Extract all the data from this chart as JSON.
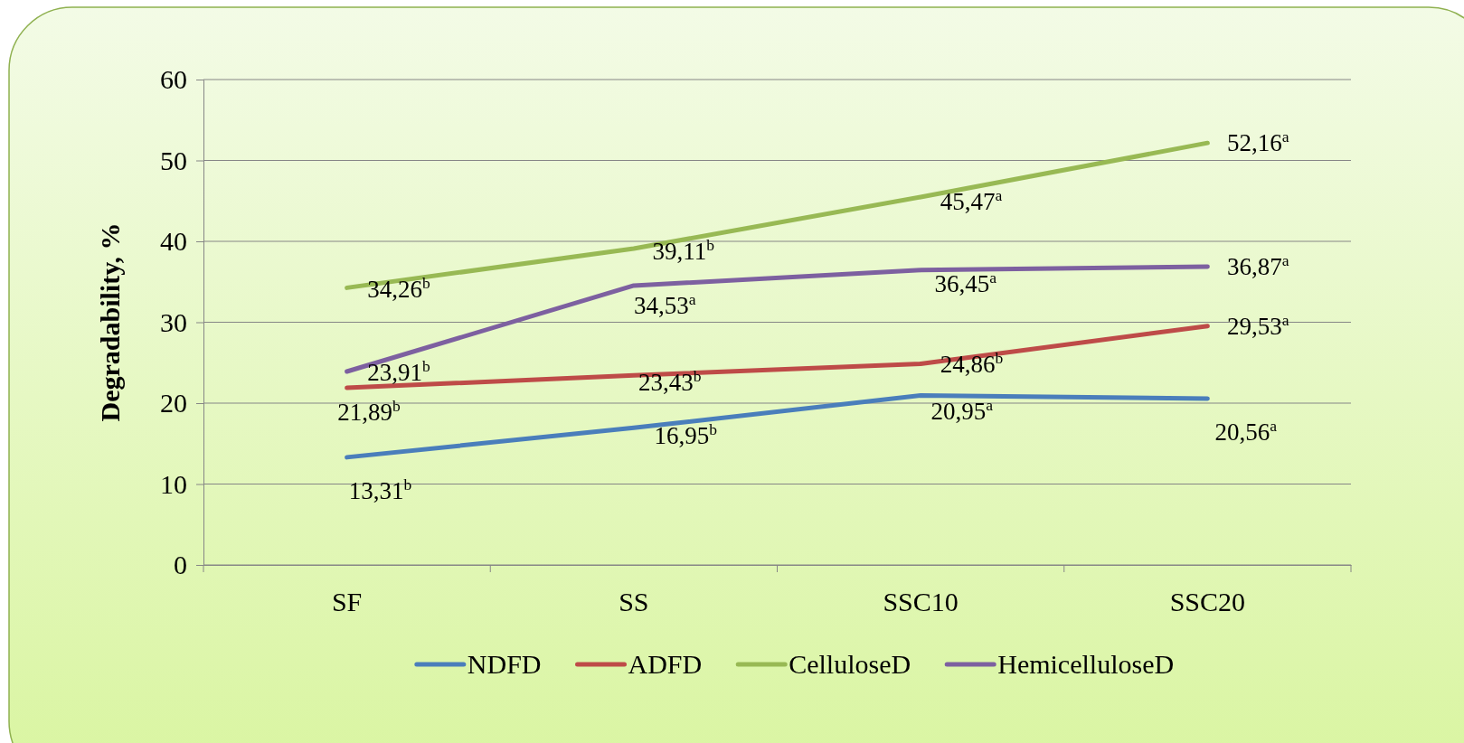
{
  "chart_data": {
    "type": "line",
    "ylabel": "Degradability, %",
    "categories": [
      "SF",
      "SS",
      "SSC10",
      "SSC20"
    ],
    "ylim": [
      0,
      60
    ],
    "yticks": [
      0,
      10,
      20,
      30,
      40,
      50,
      60
    ],
    "grid": "y",
    "legend": "bottom",
    "marker": "none",
    "line_style": "solid",
    "series": [
      {
        "name": "NDFD",
        "color": "#4a7ebb",
        "values": [
          13.31,
          16.95,
          20.95,
          20.56
        ],
        "value_labels": [
          "13,31$^{b}$",
          "16,95$^{b}$",
          "20,95$^{a}$",
          "20,56$^{a}$"
        ]
      },
      {
        "name": "ADFD",
        "color": "#be4b48",
        "values": [
          21.89,
          23.43,
          24.86,
          29.53
        ],
        "value_labels": [
          "21,89$^{b}$",
          "23,43$^{b}$",
          "24,86$^{b}$",
          "29,53$^{a}$"
        ]
      },
      {
        "name": "CelluloseD",
        "color": "#98b954",
        "values": [
          34.26,
          39.11,
          45.47,
          52.16
        ],
        "value_labels": [
          "34,26$^{b}$",
          "39,11$^{b}$",
          "45,47$^{a}$",
          "52,16$^{a}$"
        ]
      },
      {
        "name": "HemicelluloseD",
        "color": "#7d60a0",
        "values": [
          23.91,
          34.53,
          36.45,
          36.87
        ],
        "value_labels": [
          "23,91$^{b}$",
          "34,53$^{a}$",
          "36,45$^{a}$",
          "36,87$^{a}$"
        ]
      }
    ]
  }
}
